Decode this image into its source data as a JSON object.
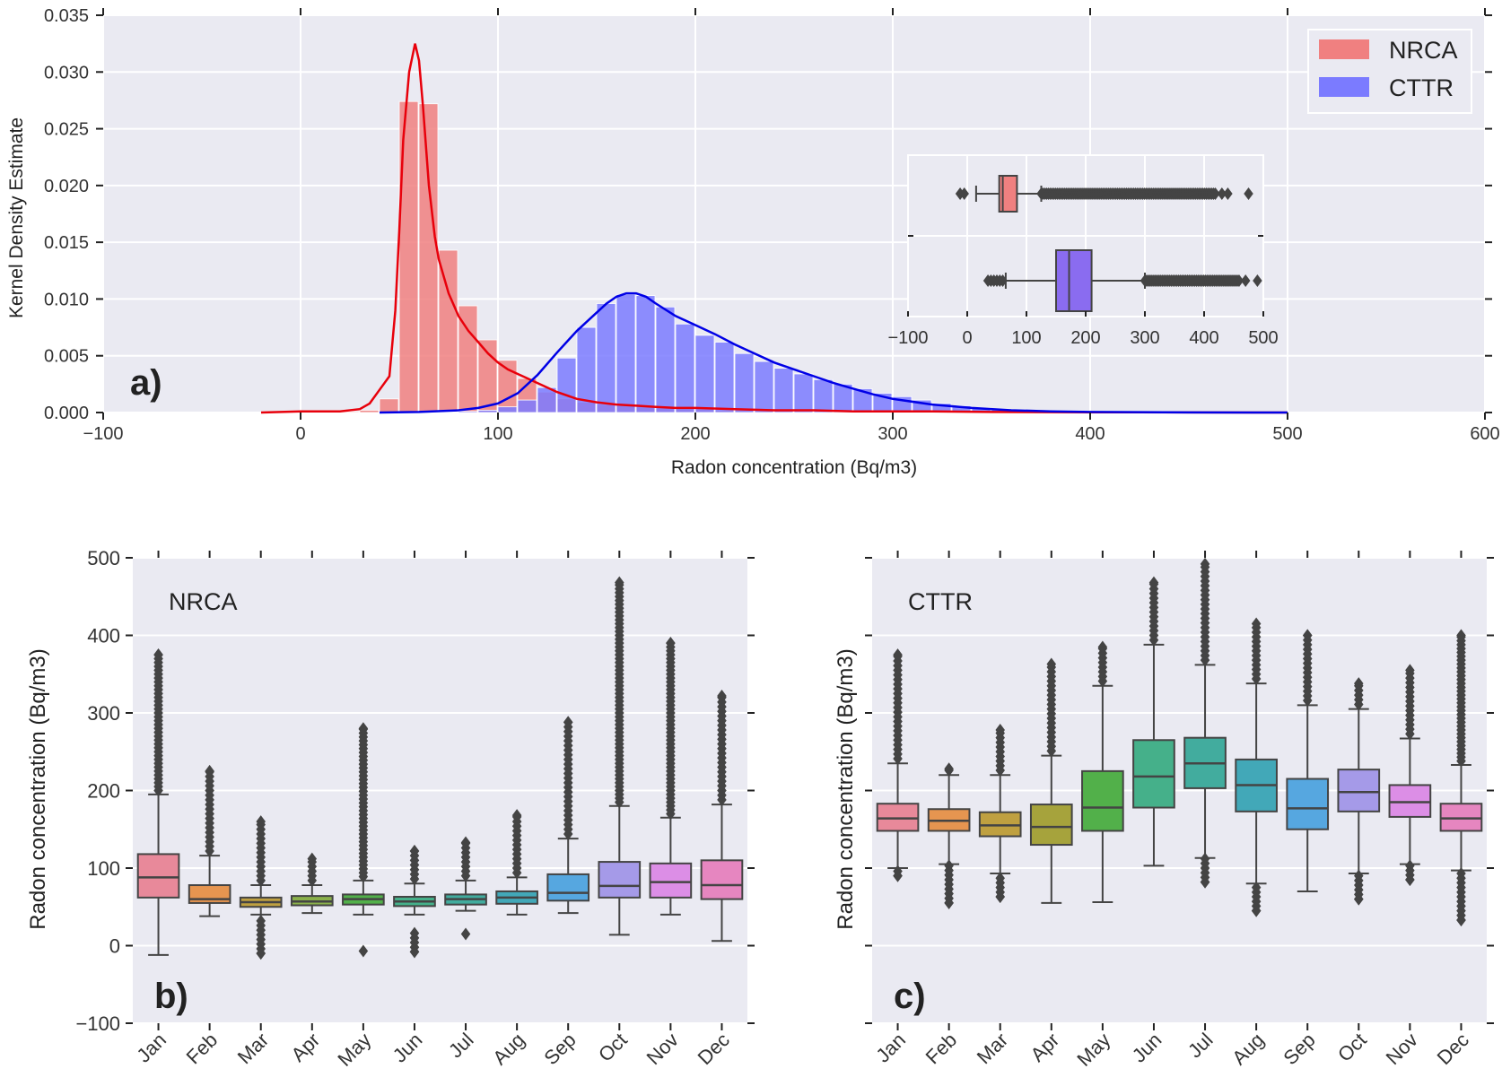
{
  "figure": {
    "panel_a_tag": "a)",
    "panel_b_tag": "b)",
    "panel_c_tag": "c)"
  },
  "chart_data": [
    {
      "type": "histogram_kde",
      "panel": "a)",
      "xlabel": "Radon concentration (Bq/m3)",
      "ylabel": "Kernel Density Estimate",
      "xlim": [
        -100,
        600
      ],
      "ylim": [
        0,
        0.035
      ],
      "xticks": [
        "−100",
        "0",
        "100",
        "200",
        "300",
        "400",
        "500",
        "600"
      ],
      "yticks": [
        "0.000",
        "0.005",
        "0.010",
        "0.015",
        "0.020",
        "0.025",
        "0.030",
        "0.035"
      ],
      "legend": [
        {
          "label": "NRCA",
          "color": "#f08080"
        },
        {
          "label": "CTTR",
          "color": "#7b7bff"
        }
      ],
      "series": [
        {
          "name": "NRCA",
          "bar_color": "#f08080",
          "line_color": "#e8000b",
          "bin_width": 10,
          "hist_x": [
            -20,
            -10,
            0,
            10,
            20,
            30,
            40,
            50,
            60,
            70,
            80,
            90,
            100,
            110,
            120,
            130,
            140,
            150,
            160,
            170,
            180,
            190,
            200,
            210,
            220,
            230,
            240,
            250,
            260,
            270,
            280,
            290,
            300,
            310,
            320,
            330,
            340,
            350,
            360,
            370,
            380,
            390,
            400,
            410,
            420,
            430,
            440,
            450,
            460,
            470,
            480,
            490,
            500,
            510
          ],
          "hist_y": [
            5e-05,
            8e-05,
            0.0001,
            0.0001,
            8e-05,
            0.0002,
            0.0012,
            0.0274,
            0.0272,
            0.0143,
            0.0094,
            0.0064,
            0.0046,
            0.003,
            0.0018,
            0.0012,
            0.0009,
            0.0007,
            0.0006,
            0.0005,
            0.0004,
            0.0003,
            0.0003,
            0.0002,
            0.0002,
            0.00015,
            0.00012,
            0.0001,
            0.0001,
            8e-05,
            6e-05,
            5e-05,
            4e-05,
            3e-05,
            3e-05,
            2e-05,
            2e-05,
            2e-05,
            2e-05,
            1e-05,
            1e-05,
            1e-05,
            1e-05,
            1e-05,
            1e-05,
            1e-05,
            1e-05,
            1e-05,
            1e-05,
            1e-05,
            1e-05,
            1e-05,
            1e-05,
            1e-05
          ],
          "kde_x": [
            -20,
            0,
            20,
            30,
            35,
            40,
            45,
            48,
            50,
            52,
            55,
            58,
            60,
            62,
            65,
            68,
            70,
            75,
            80,
            85,
            90,
            95,
            100,
            105,
            110,
            115,
            120,
            130,
            140,
            150,
            160,
            170,
            180,
            190,
            200,
            220,
            240,
            260,
            280,
            300,
            320,
            350,
            400,
            450,
            500
          ],
          "kde_y": [
            0,
            0.0001,
            0.0001,
            0.0003,
            0.0008,
            0.002,
            0.0032,
            0.009,
            0.016,
            0.024,
            0.03,
            0.0325,
            0.031,
            0.027,
            0.02,
            0.0155,
            0.0135,
            0.0105,
            0.0085,
            0.0072,
            0.0062,
            0.0052,
            0.0044,
            0.0038,
            0.0034,
            0.003,
            0.0026,
            0.0018,
            0.0012,
            0.0009,
            0.0007,
            0.0006,
            0.0005,
            0.0004,
            0.0004,
            0.0003,
            0.0002,
            0.0002,
            0.0001,
            0.0001,
            0.0001,
            5e-05,
            2e-05,
            1e-05,
            0
          ]
        },
        {
          "name": "CTTR",
          "bar_color": "#7b7bff",
          "line_color": "#0000e6",
          "bin_width": 10,
          "hist_x": [
            60,
            70,
            80,
            90,
            100,
            110,
            120,
            130,
            140,
            150,
            160,
            170,
            180,
            190,
            200,
            210,
            220,
            230,
            240,
            250,
            260,
            270,
            280,
            290,
            300,
            310,
            320,
            330,
            340,
            350,
            360,
            370,
            380,
            390,
            400,
            410,
            420,
            430,
            440,
            450,
            460,
            470,
            480,
            490,
            500
          ],
          "hist_y": [
            3e-05,
            5e-05,
            0.0001,
            0.0002,
            0.0005,
            0.0011,
            0.0022,
            0.0048,
            0.0075,
            0.0096,
            0.0104,
            0.0103,
            0.0093,
            0.0078,
            0.0068,
            0.0062,
            0.0052,
            0.0045,
            0.0039,
            0.0034,
            0.0029,
            0.0025,
            0.0021,
            0.0017,
            0.0014,
            0.0011,
            0.0008,
            0.0006,
            0.0004,
            0.0003,
            0.0002,
            0.00015,
            0.0001,
            8e-05,
            6e-05,
            5e-05,
            4e-05,
            3e-05,
            2e-05,
            2e-05,
            2e-05,
            1e-05,
            1e-05,
            1e-05,
            1e-05
          ],
          "kde_x": [
            40,
            60,
            80,
            90,
            100,
            110,
            120,
            130,
            140,
            150,
            155,
            160,
            165,
            170,
            175,
            180,
            190,
            200,
            210,
            220,
            230,
            240,
            250,
            260,
            270,
            280,
            290,
            300,
            320,
            340,
            360,
            380,
            400,
            450,
            500
          ],
          "kde_y": [
            0,
            5e-05,
            0.0002,
            0.0004,
            0.0008,
            0.0017,
            0.0033,
            0.0053,
            0.0072,
            0.0088,
            0.0096,
            0.0102,
            0.0105,
            0.0105,
            0.0102,
            0.0096,
            0.0085,
            0.0077,
            0.0069,
            0.006,
            0.0052,
            0.0044,
            0.0038,
            0.0032,
            0.0026,
            0.0021,
            0.0016,
            0.0012,
            0.0007,
            0.0004,
            0.0002,
            0.0001,
            5e-05,
            1e-05,
            0
          ]
        }
      ],
      "inset": {
        "type": "boxplot_horizontal",
        "xlim": [
          -100,
          500
        ],
        "xticks": [
          "−100",
          "0",
          "100",
          "200",
          "300",
          "400",
          "500"
        ],
        "boxes": [
          {
            "name": "NRCA",
            "color": "#f08080",
            "whisker_low": 15,
            "q1": 54,
            "median": 60,
            "q3": 84,
            "whisker_high": 125,
            "outliers_low": [
              -12,
              -5
            ],
            "outlier_range_high": [
              125,
              420
            ],
            "outliers_high_sparse": [
              430,
              440,
              475
            ]
          },
          {
            "name": "CTTR",
            "color": "#8a6cf0",
            "whisker_low": 65,
            "q1": 150,
            "median": 172,
            "q3": 210,
            "whisker_high": 300,
            "outliers_low": [
              35,
              40,
              45,
              50,
              55,
              60
            ],
            "outlier_range_high": [
              300,
              460
            ],
            "outliers_high_sparse": [
              470,
              490
            ]
          }
        ]
      }
    },
    {
      "type": "boxplot",
      "panel": "b)",
      "station": "NRCA",
      "ylabel": "Radon concentration (Bq/m3)",
      "ylim": [
        -100,
        500
      ],
      "yticks": [
        "−100",
        "0",
        "100",
        "200",
        "300",
        "400",
        "500"
      ],
      "categories": [
        "Jan",
        "Feb",
        "Mar",
        "Apr",
        "May",
        "Jun",
        "Jul",
        "Aug",
        "Sep",
        "Oct",
        "Nov",
        "Dec"
      ],
      "colors": [
        "#e8899a",
        "#e69550",
        "#bfa040",
        "#8ab04a",
        "#52b04a",
        "#45b08a",
        "#42ac9e",
        "#42a8b8",
        "#56a7e0",
        "#a59ae8",
        "#dc8ee6",
        "#e686c0"
      ],
      "boxes": [
        {
          "whisker_low": -12,
          "q1": 62,
          "median": 88,
          "q3": 118,
          "whisker_high": 195,
          "outliers_high": [
            195,
            375
          ],
          "outliers_low": []
        },
        {
          "whisker_low": 38,
          "q1": 55,
          "median": 60,
          "q3": 78,
          "whisker_high": 116,
          "outliers_high": [
            116,
            225
          ],
          "outliers_low": []
        },
        {
          "whisker_low": 40,
          "q1": 50,
          "median": 56,
          "q3": 62,
          "whisker_high": 78,
          "outliers_high": [
            78,
            160
          ],
          "outliers_low": [
            -10,
            35
          ]
        },
        {
          "whisker_low": 42,
          "q1": 52,
          "median": 57,
          "q3": 64,
          "whisker_high": 78,
          "outliers_high": [
            78,
            112
          ],
          "outliers_low": []
        },
        {
          "whisker_low": 40,
          "q1": 53,
          "median": 60,
          "q3": 66,
          "whisker_high": 84,
          "outliers_high": [
            84,
            280
          ],
          "outliers_low": [
            -7,
            -7
          ]
        },
        {
          "whisker_low": 40,
          "q1": 51,
          "median": 57,
          "q3": 63,
          "whisker_high": 80,
          "outliers_high": [
            80,
            122
          ],
          "outliers_low": [
            -8,
            18
          ]
        },
        {
          "whisker_low": 45,
          "q1": 53,
          "median": 60,
          "q3": 66,
          "whisker_high": 84,
          "outliers_high": [
            84,
            133
          ],
          "outliers_low": [
            15,
            15
          ]
        },
        {
          "whisker_low": 40,
          "q1": 54,
          "median": 62,
          "q3": 70,
          "whisker_high": 88,
          "outliers_high": [
            88,
            168
          ],
          "outliers_low": []
        },
        {
          "whisker_low": 42,
          "q1": 58,
          "median": 68,
          "q3": 92,
          "whisker_high": 138,
          "outliers_high": [
            138,
            288
          ],
          "outliers_low": []
        },
        {
          "whisker_low": 14,
          "q1": 62,
          "median": 77,
          "q3": 108,
          "whisker_high": 180,
          "outliers_high": [
            180,
            468
          ],
          "outliers_low": []
        },
        {
          "whisker_low": 40,
          "q1": 62,
          "median": 82,
          "q3": 106,
          "whisker_high": 165,
          "outliers_high": [
            165,
            390
          ],
          "outliers_low": []
        },
        {
          "whisker_low": 6,
          "q1": 60,
          "median": 78,
          "q3": 110,
          "whisker_high": 182,
          "outliers_high": [
            182,
            322
          ],
          "outliers_low": []
        }
      ]
    },
    {
      "type": "boxplot",
      "panel": "c)",
      "station": "CTTR",
      "ylabel": "Radon concentration (Bq/m3)",
      "ylim": [
        -100,
        500
      ],
      "categories": [
        "Jan",
        "Feb",
        "Mar",
        "Apr",
        "May",
        "Jun",
        "Jul",
        "Aug",
        "Sep",
        "Oct",
        "Nov",
        "Dec"
      ],
      "colors": [
        "#e8899a",
        "#e69550",
        "#bfa040",
        "#a6a33c",
        "#52b04a",
        "#45b08a",
        "#42ac9e",
        "#42a8b8",
        "#56a7e0",
        "#a59ae8",
        "#dc8ee6",
        "#e686c0"
      ],
      "boxes": [
        {
          "whisker_low": 100,
          "q1": 148,
          "median": 164,
          "q3": 183,
          "whisker_high": 235,
          "outliers_high": [
            235,
            375
          ],
          "outliers_low": [
            90,
            100
          ]
        },
        {
          "whisker_low": 105,
          "q1": 148,
          "median": 161,
          "q3": 176,
          "whisker_high": 220,
          "outliers_high": [
            220,
            228
          ],
          "outliers_low": [
            55,
            105
          ]
        },
        {
          "whisker_low": 93,
          "q1": 141,
          "median": 155,
          "q3": 172,
          "whisker_high": 220,
          "outliers_high": [
            220,
            278
          ],
          "outliers_low": [
            63,
            93
          ]
        },
        {
          "whisker_low": 55,
          "q1": 130,
          "median": 153,
          "q3": 182,
          "whisker_high": 245,
          "outliers_high": [
            245,
            363
          ],
          "outliers_low": []
        },
        {
          "whisker_low": 56,
          "q1": 148,
          "median": 178,
          "q3": 225,
          "whisker_high": 335,
          "outliers_high": [
            335,
            385
          ],
          "outliers_low": []
        },
        {
          "whisker_low": 103,
          "q1": 178,
          "median": 218,
          "q3": 265,
          "whisker_high": 388,
          "outliers_high": [
            388,
            468
          ],
          "outliers_low": []
        },
        {
          "whisker_low": 113,
          "q1": 203,
          "median": 235,
          "q3": 268,
          "whisker_high": 362,
          "outliers_high": [
            362,
            492
          ],
          "outliers_low": [
            82,
            113
          ]
        },
        {
          "whisker_low": 80,
          "q1": 173,
          "median": 207,
          "q3": 240,
          "whisker_high": 338,
          "outliers_high": [
            338,
            415
          ],
          "outliers_low": [
            45,
            80
          ]
        },
        {
          "whisker_low": 70,
          "q1": 150,
          "median": 177,
          "q3": 215,
          "whisker_high": 310,
          "outliers_high": [
            310,
            400
          ],
          "outliers_low": []
        },
        {
          "whisker_low": 93,
          "q1": 173,
          "median": 198,
          "q3": 227,
          "whisker_high": 305,
          "outliers_high": [
            305,
            338
          ],
          "outliers_low": [
            60,
            93
          ]
        },
        {
          "whisker_low": 105,
          "q1": 166,
          "median": 185,
          "q3": 207,
          "whisker_high": 267,
          "outliers_high": [
            267,
            355
          ],
          "outliers_low": [
            85,
            105
          ]
        },
        {
          "whisker_low": 97,
          "q1": 148,
          "median": 164,
          "q3": 183,
          "whisker_high": 233,
          "outliers_high": [
            233,
            400
          ],
          "outliers_low": [
            33,
            97
          ]
        }
      ]
    }
  ]
}
